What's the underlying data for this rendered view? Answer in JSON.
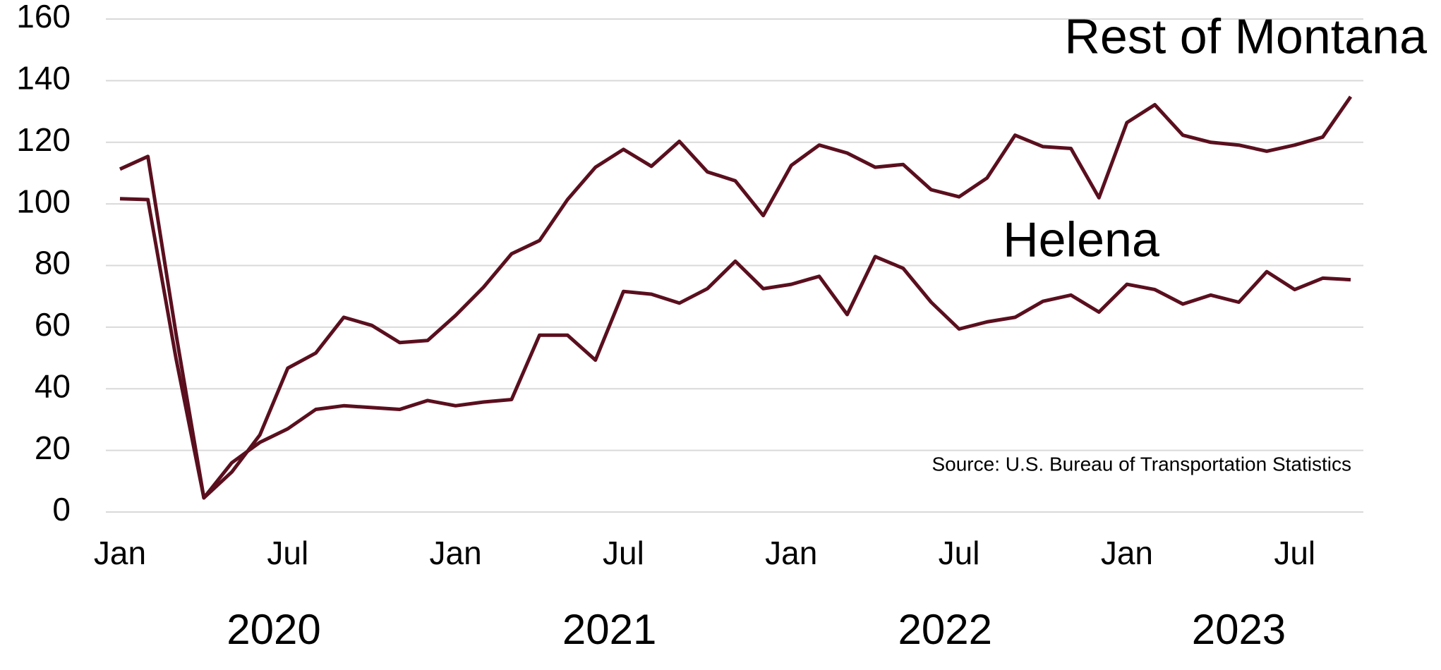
{
  "chart_data": {
    "type": "line",
    "categories": [
      "Jan",
      null,
      null,
      null,
      null,
      null,
      "Jul",
      null,
      null,
      null,
      null,
      null,
      "Jan",
      null,
      null,
      null,
      null,
      null,
      "Jul",
      null,
      null,
      null,
      null,
      null,
      "Jan",
      null,
      null,
      null,
      null,
      null,
      "Jul",
      null,
      null,
      null,
      null,
      null,
      "Jan",
      null,
      null,
      null,
      null,
      null,
      "Jul",
      null,
      null
    ],
    "x_group_labels": [
      "2020",
      "2021",
      "2022",
      "2023"
    ],
    "series": [
      {
        "name": "Rest of Montana",
        "color": "#5a0f1e",
        "values": [
          111.3,
          115.4,
          58,
          4.6,
          13,
          25,
          46.7,
          51.6,
          63.2,
          60.6,
          55,
          55.7,
          63.8,
          73,
          83.8,
          88.1,
          101.4,
          111.9,
          117.7,
          112.2,
          120.3,
          110.4,
          107.5,
          96.2,
          112.5,
          119.1,
          116.5,
          111.9,
          112.8,
          104.6,
          102.3,
          108.4,
          122.3,
          118.6,
          118,
          102,
          126.4,
          132.2,
          122.3,
          120,
          119.1,
          117.1,
          119.1,
          121.7,
          134.8
        ]
      },
      {
        "name": "Helena",
        "color": "#5a0f1e",
        "values": [
          101.7,
          101.4,
          50,
          4.6,
          16,
          22.6,
          27,
          33.3,
          34.5,
          33.9,
          33.3,
          36.2,
          34.5,
          35.7,
          36.5,
          57.4,
          57.4,
          49.3,
          71.6,
          70.7,
          67.8,
          72.5,
          81.4,
          72.5,
          73.9,
          76.5,
          64.1,
          82.9,
          79.1,
          68.1,
          59.4,
          61.7,
          63.2,
          68.4,
          70.4,
          64.9,
          73.9,
          72.2,
          67.5,
          70.4,
          68.1,
          78,
          72.2,
          75.9,
          75.4
        ]
      }
    ],
    "ylim": [
      0,
      160
    ],
    "yticks": [
      0,
      20,
      40,
      60,
      80,
      100,
      120,
      140,
      160
    ],
    "grid": true,
    "annotations": [
      "Source:  U.S. Bureau of Transportation Statistics"
    ]
  }
}
